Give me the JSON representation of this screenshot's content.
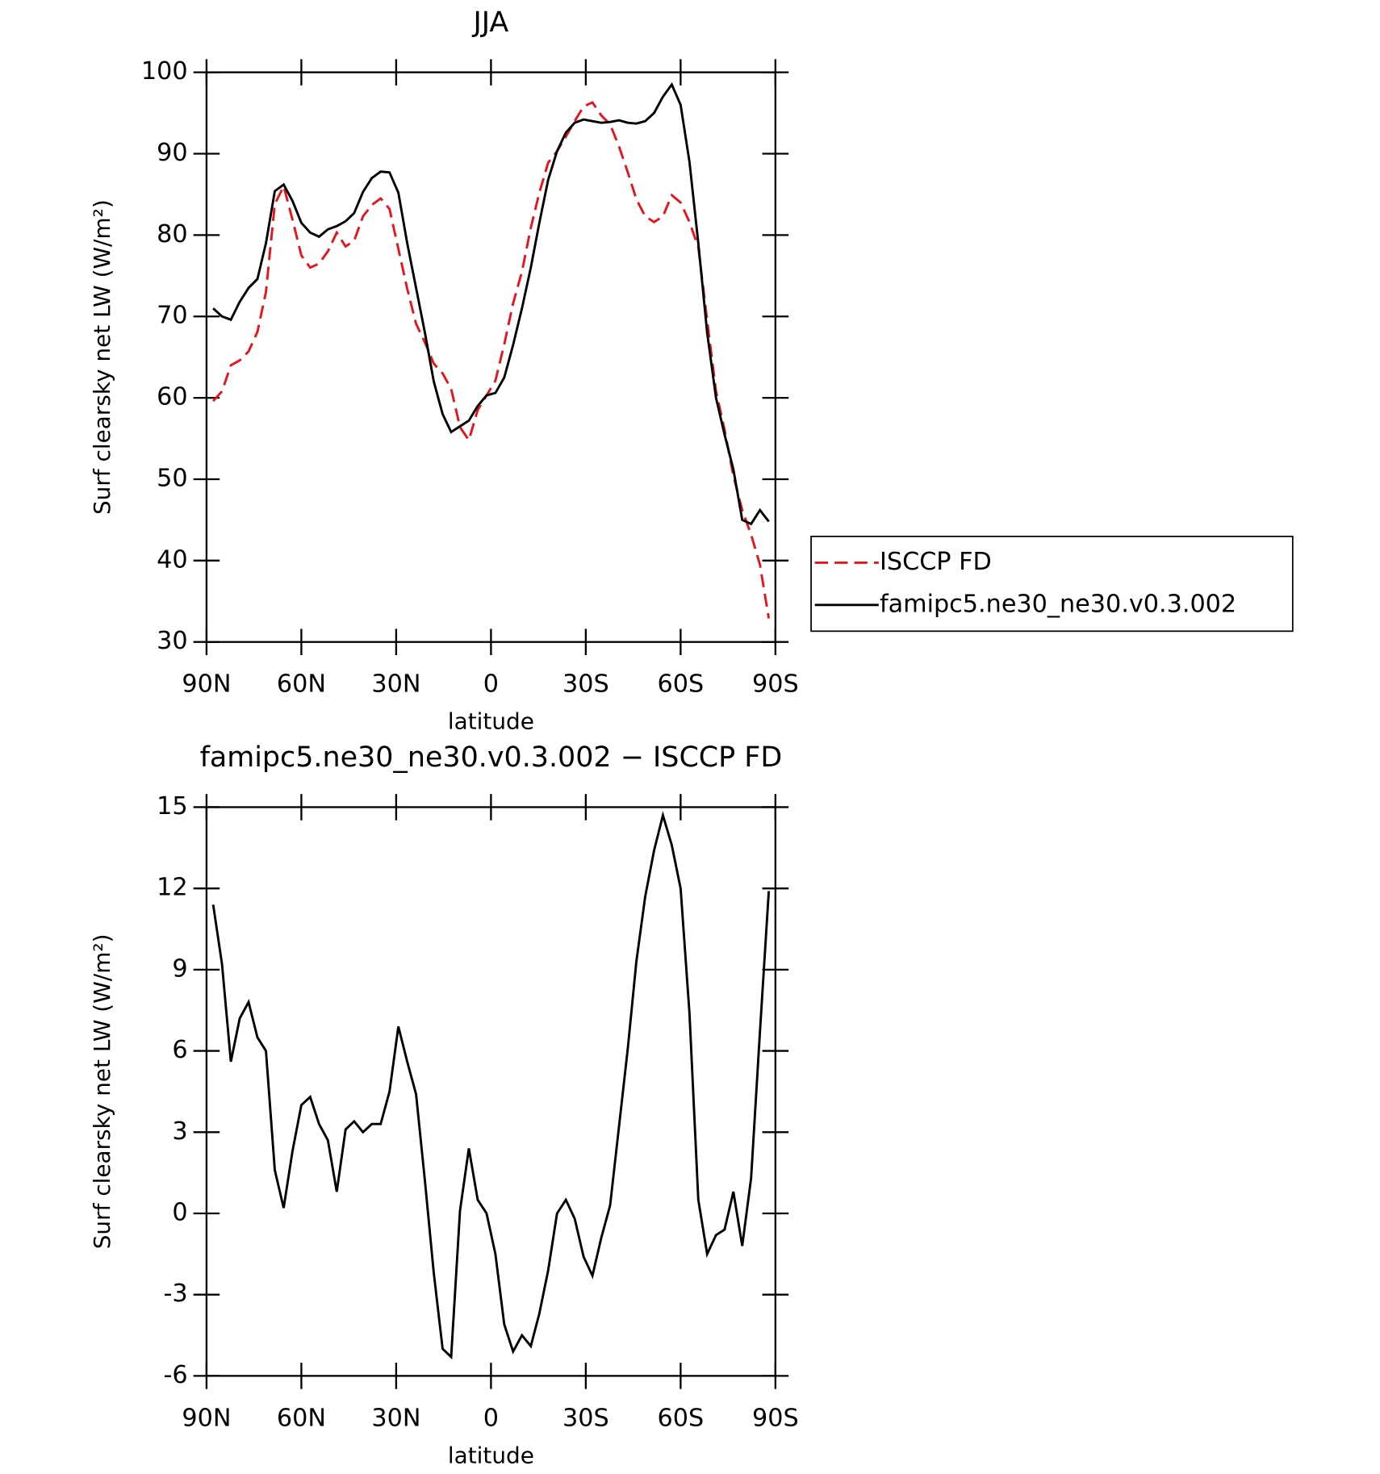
{
  "chart_data": [
    {
      "type": "line",
      "title": "JJA",
      "xlabel": "latitude",
      "ylabel": "Surf clearsky net LW (W/m²)",
      "x": [
        87.9,
        85.1,
        82.3,
        79.5,
        76.7,
        73.9,
        71.2,
        68.4,
        65.6,
        62.8,
        60.0,
        57.2,
        54.4,
        51.6,
        48.8,
        46.0,
        43.3,
        40.5,
        37.7,
        34.9,
        32.1,
        29.3,
        26.5,
        23.7,
        20.9,
        18.1,
        15.3,
        12.6,
        9.8,
        7.0,
        4.2,
        1.4,
        -1.4,
        -4.2,
        -7.0,
        -9.8,
        -12.6,
        -15.3,
        -18.1,
        -20.9,
        -23.7,
        -26.5,
        -29.3,
        -32.1,
        -34.9,
        -37.7,
        -40.5,
        -43.3,
        -46.0,
        -48.8,
        -51.6,
        -54.4,
        -57.2,
        -60.0,
        -62.8,
        -65.6,
        -68.4,
        -71.2,
        -73.9,
        -76.7,
        -79.5,
        -82.3,
        -85.1,
        -87.9
      ],
      "series": [
        {
          "name": "ISCCP FD",
          "color": "#e8141b",
          "linestyle": "dashed",
          "values": [
            59.6,
            60.8,
            64,
            64.6,
            65.7,
            68.1,
            73,
            83.8,
            86,
            81.9,
            77.5,
            76,
            76.5,
            78,
            80.3,
            78.6,
            79.3,
            82.3,
            83.7,
            84.5,
            83.2,
            78.3,
            73.4,
            69.1,
            66.8,
            64.2,
            63,
            61.1,
            56.4,
            54.8,
            58.5,
            60.3,
            62.1,
            66.6,
            71.6,
            75.5,
            80.9,
            85.2,
            88.9,
            90.3,
            92.1,
            94,
            95.8,
            96.3,
            94.7,
            93.6,
            90.9,
            87.7,
            84.4,
            82.3,
            81.6,
            82.3,
            84.9,
            84,
            81.6,
            78.5,
            69.5,
            60.8,
            56.1,
            50.4,
            46.2,
            43.2,
            39.5,
            32.9
          ]
        },
        {
          "name": "famipc5.ne30_ne30.v0.3.002",
          "color": "#000000",
          "linestyle": "solid",
          "values": [
            71,
            70,
            69.6,
            71.8,
            73.5,
            74.6,
            79,
            85.4,
            86.2,
            84.2,
            81.5,
            80.3,
            79.8,
            80.7,
            81.1,
            81.7,
            82.7,
            85.3,
            87,
            87.8,
            87.7,
            85.2,
            79,
            73.5,
            68,
            62,
            58,
            55.8,
            56.5,
            57.2,
            59,
            60.3,
            60.6,
            62.5,
            66.5,
            71,
            76,
            81.5,
            86.8,
            90.3,
            92.6,
            93.8,
            94.2,
            94,
            93.8,
            93.9,
            94.1,
            93.8,
            93.7,
            94,
            95,
            97,
            98.5,
            96,
            89,
            79,
            68,
            60,
            55.5,
            51.2,
            45,
            44.5,
            46.2,
            44.8
          ]
        }
      ],
      "xlim": [
        90,
        -90
      ],
      "xticks": [
        {
          "value": 90,
          "label": "90N"
        },
        {
          "value": 60,
          "label": "60N"
        },
        {
          "value": 30,
          "label": "30N"
        },
        0,
        {
          "value": -30,
          "label": "30S"
        },
        {
          "value": -60,
          "label": "60S"
        },
        {
          "value": -90,
          "label": "90S"
        }
      ],
      "ylim": [
        30,
        100
      ],
      "yticks": [
        30,
        40,
        50,
        60,
        70,
        80,
        90,
        100
      ],
      "legend": "right"
    },
    {
      "type": "line",
      "title": "famipc5.ne30_ne30.v0.3.002 − ISCCP FD",
      "xlabel": "latitude",
      "ylabel": "Surf clearsky net LW (W/m²)",
      "x": [
        87.9,
        85.1,
        82.3,
        79.5,
        76.7,
        73.9,
        71.2,
        68.4,
        65.6,
        62.8,
        60.0,
        57.2,
        54.4,
        51.6,
        48.8,
        46.0,
        43.3,
        40.5,
        37.7,
        34.9,
        32.1,
        29.3,
        26.5,
        23.7,
        20.9,
        18.1,
        15.3,
        12.6,
        9.8,
        7.0,
        4.2,
        1.4,
        -1.4,
        -4.2,
        -7.0,
        -9.8,
        -12.6,
        -15.3,
        -18.1,
        -20.9,
        -23.7,
        -26.5,
        -29.3,
        -32.1,
        -34.9,
        -37.7,
        -40.5,
        -43.3,
        -46.0,
        -48.8,
        -51.6,
        -54.4,
        -57.2,
        -60.0,
        -62.8,
        -65.6,
        -68.4,
        -71.2,
        -73.9,
        -76.7,
        -79.5,
        -82.3,
        -85.1,
        -87.9
      ],
      "series": [
        {
          "color": "#000000",
          "linestyle": "solid",
          "values": [
            11.4,
            9.2,
            5.6,
            7.2,
            7.8,
            6.5,
            6,
            1.6,
            0.2,
            2.3,
            4,
            4.3,
            3.3,
            2.7,
            0.8,
            3.1,
            3.4,
            3,
            3.3,
            3.3,
            4.5,
            6.9,
            5.6,
            4.4,
            1.2,
            -2.2,
            -5,
            -5.3,
            0.1,
            2.4,
            0.5,
            0,
            -1.5,
            -4.1,
            -5.1,
            -4.5,
            -4.9,
            -3.7,
            -2.1,
            0,
            0.5,
            -0.2,
            -1.6,
            -2.3,
            -0.9,
            0.3,
            3.2,
            6.1,
            9.3,
            11.7,
            13.4,
            14.7,
            13.6,
            12,
            7.4,
            0.5,
            -1.5,
            -0.8,
            -0.6,
            0.8,
            -1.2,
            1.3,
            6.7,
            11.9
          ]
        }
      ],
      "xlim": [
        90,
        -90
      ],
      "xticks": [
        {
          "value": 90,
          "label": "90N"
        },
        {
          "value": 60,
          "label": "60N"
        },
        {
          "value": 30,
          "label": "30N"
        },
        0,
        {
          "value": -30,
          "label": "30S"
        },
        {
          "value": -60,
          "label": "60S"
        },
        {
          "value": -90,
          "label": "90S"
        }
      ],
      "ylim": [
        -6,
        15
      ],
      "yticks": [
        -6,
        -3,
        0,
        3,
        6,
        9,
        12,
        15
      ]
    }
  ]
}
